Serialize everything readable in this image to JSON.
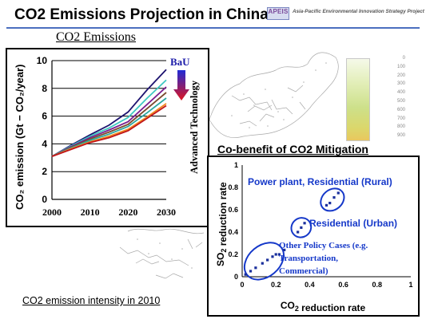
{
  "slide": {
    "title": "CO2 Emissions Projection in China",
    "logo_text": "APEIS",
    "logo_tagline": "Asia-Pacific Environmental Innovation Strategy Project",
    "subheading": "CO2 Emissions",
    "footer_caption": "CO2 emission intensity in 2010",
    "stray_mark": "?"
  },
  "map_legend": {
    "labels": [
      "0",
      "100",
      "200",
      "300",
      "400",
      "500",
      "600",
      "700",
      "800",
      "900"
    ],
    "colors": [
      "#f5f9e9",
      "#cde08a",
      "#e9c75e"
    ]
  },
  "colors": {
    "title_rule": "#4b6fbf",
    "ellipse": "#1538c9",
    "text_blue": "#1538c9",
    "scatter_points": "#1a2f9c",
    "arrow_top": "#1f2bd6",
    "arrow_bottom": "#e0151f",
    "map_outline": "#a8a8a8"
  },
  "chart_data": [
    {
      "type": "line",
      "title": "",
      "xlabel": "",
      "ylabel": "CO2 emission (Gt − CO2/year)",
      "x": [
        2000,
        2005,
        2010,
        2015,
        2020,
        2025,
        2030
      ],
      "xticks": [
        "2000",
        "2010",
        "2020",
        "2030"
      ],
      "yticks": [
        "0",
        "2",
        "4",
        "6",
        "8",
        "10"
      ],
      "xlim": [
        2000,
        2030
      ],
      "ylim": [
        0,
        10
      ],
      "grid": "horizontal",
      "series": [
        {
          "color": "#1e1470",
          "values": [
            3.1,
            3.9,
            4.65,
            5.35,
            6.3,
            7.9,
            9.35
          ]
        },
        {
          "color": "#3ec9c2",
          "values": [
            3.1,
            3.85,
            4.55,
            5.15,
            5.9,
            7.3,
            8.6
          ]
        },
        {
          "color": "#7a1f8f",
          "values": [
            3.1,
            3.8,
            4.45,
            5.0,
            5.6,
            6.85,
            8.1
          ]
        },
        {
          "color": "#7b4a2e",
          "values": [
            3.1,
            3.75,
            4.35,
            4.85,
            5.4,
            6.55,
            7.7
          ]
        },
        {
          "color": "#2aa8a0",
          "values": [
            3.1,
            3.7,
            4.25,
            4.7,
            5.25,
            6.25,
            7.3
          ]
        },
        {
          "color": "#f28a1f",
          "values": [
            3.1,
            3.65,
            4.15,
            4.55,
            5.05,
            5.95,
            6.9
          ]
        },
        {
          "color": "#c0161c",
          "values": [
            3.1,
            3.6,
            4.1,
            4.45,
            4.95,
            5.85,
            6.75
          ]
        }
      ],
      "annotations": {
        "top_label": "BaU",
        "side_label": "Advanced Technology"
      }
    },
    {
      "type": "scatter",
      "title": "Co-benefit of CO2 Mitigation",
      "xlabel": "CO2 reduction rate",
      "ylabel": "SO2 reduction rate",
      "xlim": [
        0,
        1
      ],
      "ylim": [
        0,
        1
      ],
      "xticks": [
        "0",
        "0.2",
        "0.4",
        "0.6",
        "0.8",
        "1"
      ],
      "yticks": [
        "0",
        "0.2",
        "0.4",
        "0.6",
        "0.8",
        "1"
      ],
      "grid": "none",
      "groups": [
        {
          "label": "Power plant, Residential (Rural)",
          "points": [
            [
              0.5,
              0.64
            ],
            [
              0.52,
              0.66
            ],
            [
              0.545,
              0.71
            ],
            [
              0.57,
              0.75
            ]
          ],
          "ellipse": {
            "cx": 0.535,
            "cy": 0.69,
            "rx": 0.075,
            "ry": 0.09
          }
        },
        {
          "label": "Residential (Urban)",
          "points": [
            [
              0.33,
              0.4
            ],
            [
              0.35,
              0.44
            ],
            [
              0.37,
              0.48
            ]
          ],
          "ellipse": {
            "cx": 0.35,
            "cy": 0.44,
            "rx": 0.06,
            "ry": 0.085
          }
        },
        {
          "label": "Other Policy Cases (e.g. Transportation, Commercial)",
          "points": [
            [
              0.02,
              0.02
            ],
            [
              0.05,
              0.05
            ],
            [
              0.08,
              0.08
            ],
            [
              0.12,
              0.12
            ],
            [
              0.15,
              0.15
            ],
            [
              0.18,
              0.18
            ],
            [
              0.2,
              0.2
            ],
            [
              0.22,
              0.2
            ],
            [
              0.25,
              0.24
            ]
          ],
          "ellipse": {
            "cx": 0.13,
            "cy": 0.14,
            "rx": 0.13,
            "ry": 0.14
          }
        }
      ]
    }
  ]
}
